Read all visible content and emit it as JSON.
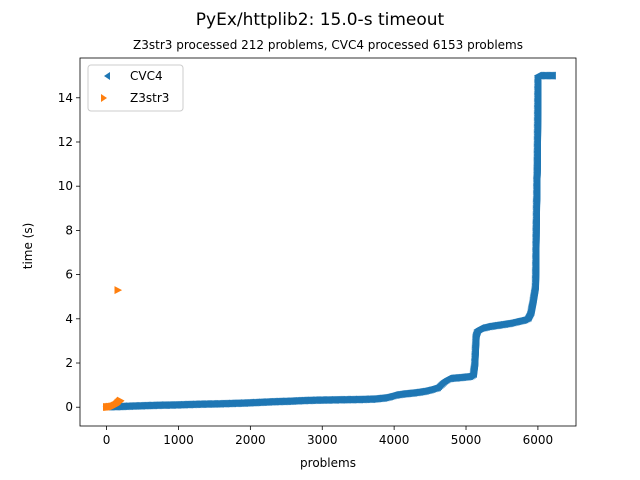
{
  "chart_data": {
    "type": "scatter",
    "title": "PyEx/httplib2: 15.0-s timeout",
    "subtitle": "Z3str3 processed 212 problems, CVC4 processed 6153 problems",
    "xlabel": "problems",
    "ylabel": "time (s)",
    "xlim": [
      -370,
      6530
    ],
    "ylim": [
      -0.85,
      15.8
    ],
    "xticks": [
      0,
      1000,
      2000,
      3000,
      4000,
      5000,
      6000
    ],
    "yticks": [
      0,
      2,
      4,
      6,
      8,
      10,
      12,
      14
    ],
    "legend_position": "top-left",
    "grid": false,
    "series": [
      {
        "name": "CVC4",
        "marker": "triangle-left",
        "color": "#1f77b4",
        "points": [
          [
            0,
            0.02
          ],
          [
            150,
            0.03
          ],
          [
            300,
            0.05
          ],
          [
            500,
            0.07
          ],
          [
            700,
            0.09
          ],
          [
            900,
            0.1
          ],
          [
            1100,
            0.12
          ],
          [
            1300,
            0.14
          ],
          [
            1500,
            0.15
          ],
          [
            1700,
            0.17
          ],
          [
            1900,
            0.19
          ],
          [
            2100,
            0.22
          ],
          [
            2300,
            0.25
          ],
          [
            2500,
            0.27
          ],
          [
            2700,
            0.3
          ],
          [
            2900,
            0.32
          ],
          [
            3100,
            0.33
          ],
          [
            3300,
            0.34
          ],
          [
            3500,
            0.35
          ],
          [
            3700,
            0.37
          ],
          [
            3850,
            0.42
          ],
          [
            3950,
            0.5
          ],
          [
            4000,
            0.55
          ],
          [
            4100,
            0.6
          ],
          [
            4200,
            0.63
          ],
          [
            4300,
            0.67
          ],
          [
            4400,
            0.72
          ],
          [
            4500,
            0.8
          ],
          [
            4600,
            0.9
          ],
          [
            4650,
            1.05
          ],
          [
            4700,
            1.2
          ],
          [
            4750,
            1.3
          ],
          [
            4850,
            1.33
          ],
          [
            4950,
            1.36
          ],
          [
            5050,
            1.4
          ],
          [
            5100,
            1.5
          ],
          [
            5120,
            2.0
          ],
          [
            5130,
            2.7
          ],
          [
            5140,
            3.3
          ],
          [
            5160,
            3.5
          ],
          [
            5200,
            3.58
          ],
          [
            5300,
            3.65
          ],
          [
            5400,
            3.7
          ],
          [
            5500,
            3.75
          ],
          [
            5600,
            3.8
          ],
          [
            5700,
            3.88
          ],
          [
            5800,
            3.95
          ],
          [
            5860,
            4.05
          ],
          [
            5900,
            4.3
          ],
          [
            5930,
            4.8
          ],
          [
            5950,
            5.2
          ],
          [
            5965,
            5.5
          ],
          [
            5970,
            6.55
          ],
          [
            5975,
            8.3
          ],
          [
            5978,
            8.5
          ],
          [
            5980,
            9.3
          ],
          [
            5983,
            9.5
          ],
          [
            5985,
            10.4
          ],
          [
            5988,
            10.6
          ],
          [
            5990,
            11.2
          ],
          [
            5993,
            12.1
          ],
          [
            6000,
            15.0
          ],
          [
            6050,
            15.0
          ],
          [
            6100,
            15.0
          ],
          [
            6150,
            15.0
          ],
          [
            6200,
            15.0
          ]
        ]
      },
      {
        "name": "Z3str3",
        "marker": "triangle-right",
        "color": "#ff7f0e",
        "points": [
          [
            0,
            0.01
          ],
          [
            20,
            0.01
          ],
          [
            40,
            0.02
          ],
          [
            60,
            0.02
          ],
          [
            80,
            0.03
          ],
          [
            100,
            0.05
          ],
          [
            120,
            0.08
          ],
          [
            140,
            0.12
          ],
          [
            150,
            0.15
          ],
          [
            160,
            0.2
          ],
          [
            170,
            0.22
          ],
          [
            180,
            0.25
          ],
          [
            190,
            0.28
          ],
          [
            195,
            0.3
          ],
          [
            160,
            5.3
          ]
        ]
      }
    ]
  }
}
